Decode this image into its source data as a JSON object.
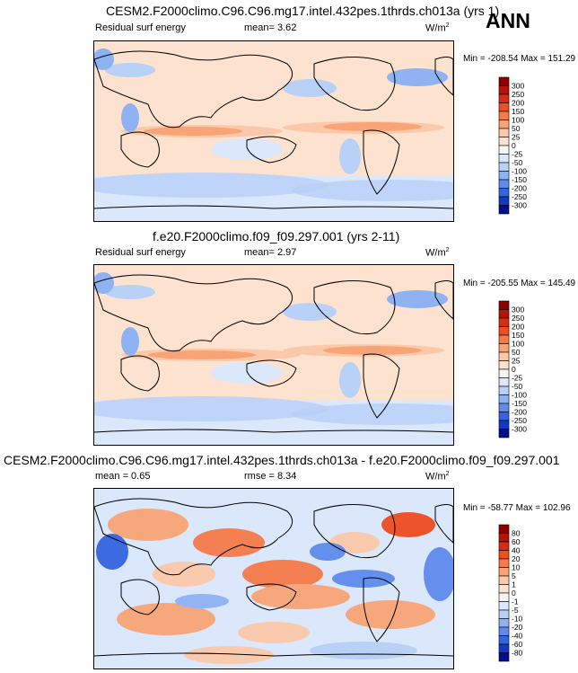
{
  "season": "ANN",
  "units_base": "W/m",
  "units_exp": "2",
  "panels": [
    {
      "title": "CESM2.F2000climo.C96.C96.mg17.intel.432pes.1thrds.ch013a (yrs 1)",
      "var_label": "Residual surf energy",
      "left_stat": "mean=  3.62",
      "right_stat": "",
      "minmax": "Min = -208.54 Max = 151.29",
      "base_color": "#fde3cf"
    },
    {
      "title": "f.e20.F2000climo.f09_f09.297.001 (yrs 2-11)",
      "var_label": "Residual surf energy",
      "left_stat": "mean=  2.97",
      "right_stat": "",
      "minmax": "Min = -205.55 Max = 145.49",
      "base_color": "#fde3cf"
    },
    {
      "title": "CESM2.F2000climo.C96.C96.mg17.intel.432pes.1thrds.ch013a - f.e20.F2000climo.f09_f09.297.001",
      "var_label": "",
      "left_stat": "mean =   0.65",
      "right_stat": "rmse =   8.34",
      "minmax": "Min = -58.77 Max = 102.96",
      "base_color": "#dbe8fb"
    }
  ],
  "colorbars": [
    {
      "levels": [
        "300",
        "250",
        "200",
        "150",
        "100",
        "50",
        "25",
        "0",
        "-25",
        "-50",
        "-100",
        "-150",
        "-200",
        "-250",
        "-300"
      ],
      "colors": [
        "#8b0000",
        "#b5120a",
        "#d92b12",
        "#ef4d22",
        "#f67a47",
        "#f8a476",
        "#fbc9a9",
        "#fde3cf",
        "#f5f5f5",
        "#dbe8fb",
        "#b9d0f7",
        "#8fb2f2",
        "#5e8bec",
        "#3465e0",
        "#1438c2",
        "#000f8c"
      ]
    },
    {
      "levels": [
        "300",
        "250",
        "200",
        "150",
        "100",
        "50",
        "25",
        "0",
        "-25",
        "-50",
        "-100",
        "-150",
        "-200",
        "-250",
        "-300"
      ],
      "colors": [
        "#8b0000",
        "#b5120a",
        "#d92b12",
        "#ef4d22",
        "#f67a47",
        "#f8a476",
        "#fbc9a9",
        "#fde3cf",
        "#f5f5f5",
        "#dbe8fb",
        "#b9d0f7",
        "#8fb2f2",
        "#5e8bec",
        "#3465e0",
        "#1438c2",
        "#000f8c"
      ]
    },
    {
      "levels": [
        "80",
        "60",
        "40",
        "20",
        "10",
        "5",
        "1",
        "0",
        "-1",
        "-5",
        "-10",
        "-20",
        "-40",
        "-60",
        "-80"
      ],
      "colors": [
        "#8b0000",
        "#b5120a",
        "#d92b12",
        "#ef4d22",
        "#f67a47",
        "#f8a476",
        "#fbc9a9",
        "#fde3cf",
        "#f5f5f5",
        "#dbe8fb",
        "#b9d0f7",
        "#8fb2f2",
        "#5e8bec",
        "#3465e0",
        "#1438c2",
        "#000f8c"
      ]
    }
  ],
  "chart_data": [
    {
      "type": "heatmap",
      "title": "CESM2.F2000climo.C96.C96.mg17.intel.432pes.1thrds.ch013a (yrs 1)",
      "variable": "Residual surf energy",
      "units": "W/m2",
      "mean": 3.62,
      "min": -208.54,
      "max": 151.29,
      "contour_levels": [
        -300,
        -250,
        -200,
        -150,
        -100,
        -50,
        -25,
        0,
        25,
        50,
        100,
        150,
        200,
        250,
        300
      ]
    },
    {
      "type": "heatmap",
      "title": "f.e20.F2000climo.f09_f09.297.001 (yrs 2-11)",
      "variable": "Residual surf energy",
      "units": "W/m2",
      "mean": 2.97,
      "min": -205.55,
      "max": 145.49,
      "contour_levels": [
        -300,
        -250,
        -200,
        -150,
        -100,
        -50,
        -25,
        0,
        25,
        50,
        100,
        150,
        200,
        250,
        300
      ]
    },
    {
      "type": "heatmap",
      "title": "CESM2.F2000climo.C96.C96.mg17.intel.432pes.1thrds.ch013a - f.e20.F2000climo.f09_f09.297.001",
      "units": "W/m2",
      "mean": 0.65,
      "rmse": 8.34,
      "min": -58.77,
      "max": 102.96,
      "contour_levels": [
        -80,
        -60,
        -40,
        -20,
        -10,
        -5,
        -1,
        0,
        1,
        5,
        10,
        20,
        40,
        60,
        80
      ]
    }
  ]
}
